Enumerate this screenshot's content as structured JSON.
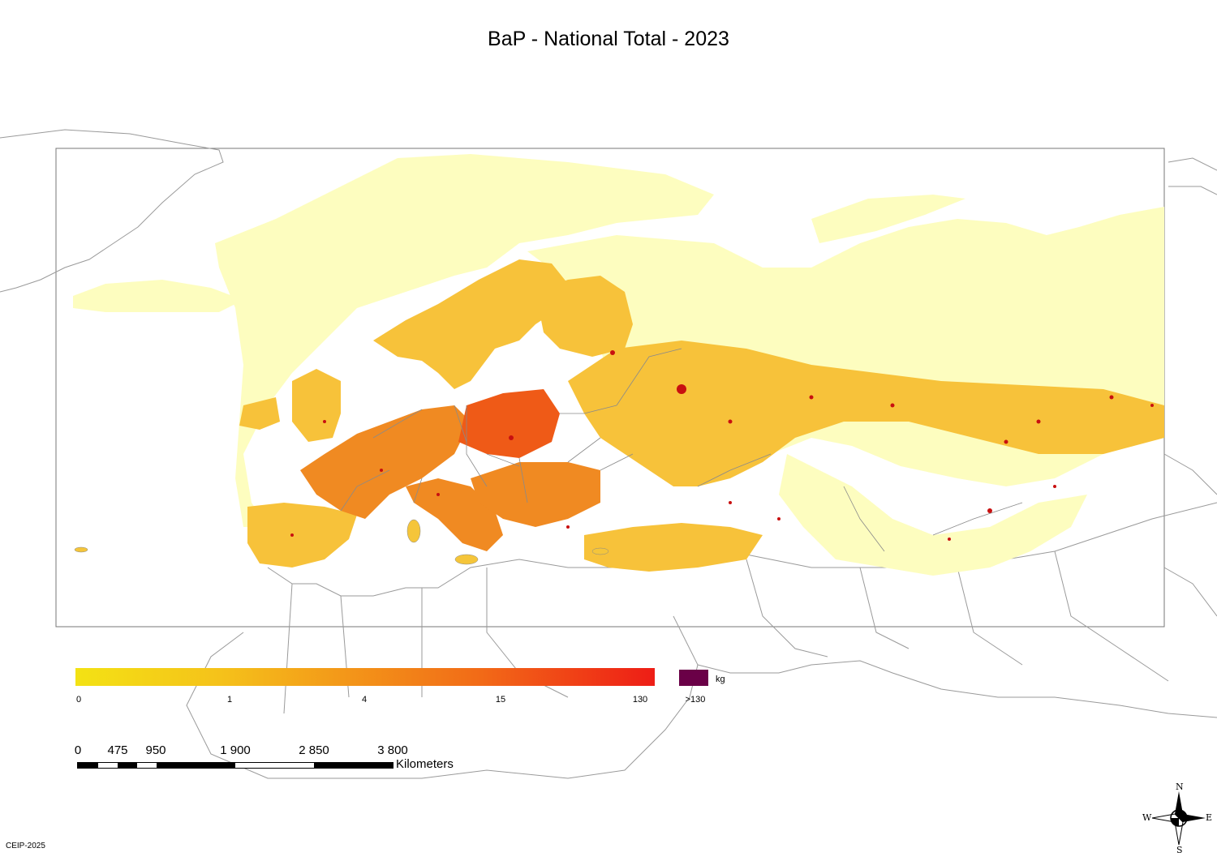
{
  "title": "BaP - National Total - 2023",
  "legend": {
    "ticks": [
      "0",
      "1",
      "4",
      "15",
      "130"
    ],
    "overflow_label": ">130",
    "unit": "kg",
    "gradient_colors": [
      "#f3e214",
      "#f5c21a",
      "#f39a19",
      "#f26a17",
      "#ee1d16"
    ],
    "overflow_color": "#6a0047"
  },
  "scale": {
    "labels": [
      "0",
      "475",
      "950",
      "1 900",
      "2 850",
      "3 800"
    ],
    "unit": "Kilometers"
  },
  "compass": {
    "n": "N",
    "s": "S",
    "e": "E",
    "w": "W"
  },
  "credit": "CEIP-2025",
  "colors": {
    "low": "#fdfdbf",
    "medium": "#f7b32a",
    "high": "#ef5a17",
    "hotspot": "#c81010",
    "border": "#888888"
  }
}
